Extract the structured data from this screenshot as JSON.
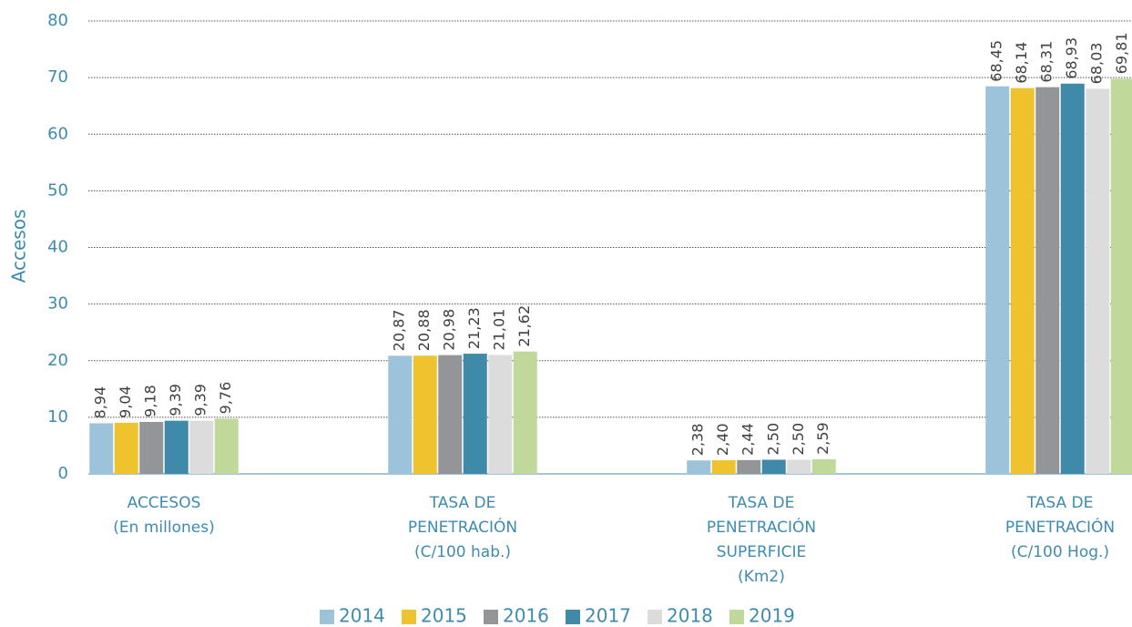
{
  "chart_data": {
    "type": "bar",
    "y_axis_label": "Accesos",
    "categories": [
      [
        "ACCESOS",
        "(En millones)"
      ],
      [
        "TASA DE",
        "PENETRACIÓN",
        "(C/100 hab.)"
      ],
      [
        "TASA DE",
        "PENETRACIÓN",
        "SUPERFICIE",
        "(Km2)"
      ],
      [
        "TASA DE",
        "PENETRACIÓN",
        "(C/100 Hog.)"
      ]
    ],
    "series": [
      {
        "name": "2014",
        "color": "#9dc3da",
        "values": [
          8.94,
          20.87,
          2.38,
          68.45
        ],
        "value_labels": [
          "8,94",
          "20,87",
          "2,38",
          "68,45"
        ]
      },
      {
        "name": "2015",
        "color": "#eec32e",
        "values": [
          9.04,
          20.88,
          2.4,
          68.14
        ],
        "value_labels": [
          "9,04",
          "20,88",
          "2,40",
          "68,14"
        ]
      },
      {
        "name": "2016",
        "color": "#939598",
        "values": [
          9.18,
          20.98,
          2.44,
          68.31
        ],
        "value_labels": [
          "9,18",
          "20,98",
          "2,44",
          "68,31"
        ]
      },
      {
        "name": "2017",
        "color": "#3e8aa8",
        "values": [
          9.39,
          21.23,
          2.5,
          68.93
        ],
        "value_labels": [
          "9,39",
          "21,23",
          "2,50",
          "68,93"
        ]
      },
      {
        "name": "2018",
        "color": "#dcdcdc",
        "values": [
          9.39,
          21.01,
          2.5,
          68.03
        ],
        "value_labels": [
          "9,39",
          "21,01",
          "2,50",
          "68,03"
        ]
      },
      {
        "name": "2019",
        "color": "#c0d89a",
        "values": [
          9.76,
          21.62,
          2.59,
          69.81
        ],
        "value_labels": [
          "9,76",
          "21,62",
          "2,59",
          "69,81"
        ]
      }
    ],
    "ylim": [
      0,
      80
    ],
    "yticks": [
      0,
      10,
      20,
      30,
      40,
      50,
      60,
      70,
      80
    ],
    "grid": true,
    "legend": "bottom"
  }
}
